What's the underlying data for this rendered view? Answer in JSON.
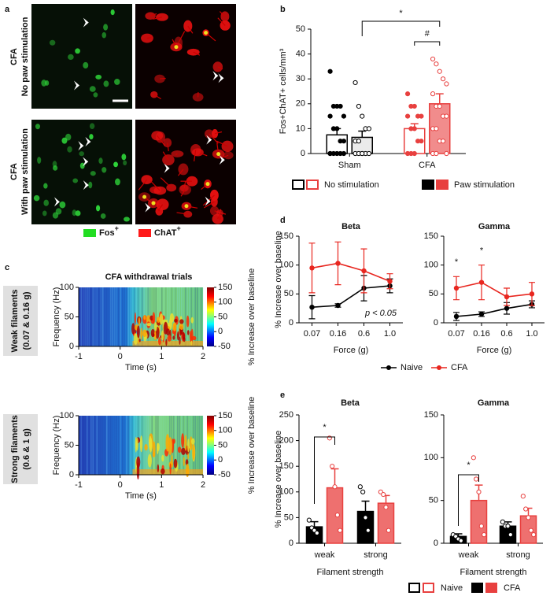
{
  "panel_labels": [
    "a",
    "b",
    "c",
    "d",
    "e"
  ],
  "panel_a": {
    "rows": [
      {
        "lines": [
          "CFA",
          "No paw stimulation"
        ]
      },
      {
        "lines": [
          "CFA",
          "With paw stimulation"
        ]
      }
    ],
    "legend": [
      {
        "name": "Fos",
        "sup": "+",
        "color": "#22dd22"
      },
      {
        "name": "ChAT",
        "sup": "+",
        "color": "#ff1a1a"
      }
    ]
  },
  "chart_data": [
    {
      "type": "bar",
      "ylabel": "Fos+ChAT+ cells/mm³",
      "categories": [
        "Sham",
        "CFA"
      ],
      "category_colors": [
        "#000000",
        "#e8403f"
      ],
      "ylim": [
        0,
        50
      ],
      "yticks": [
        0,
        10,
        20,
        30,
        40,
        50
      ],
      "series": [
        {
          "name": "No stimulation",
          "style": "open",
          "values": [
            7.5,
            10
          ],
          "errors": [
            2.5,
            2
          ],
          "points": [
            [
              33,
              19,
              19,
              19,
              15,
              15,
              10,
              10,
              5,
              5,
              0,
              0,
              0,
              0,
              0,
              0
            ],
            [
              24,
              19,
              19,
              15,
              15,
              15,
              10,
              10,
              5,
              5,
              0,
              0,
              0
            ]
          ]
        },
        {
          "name": "Paw stimulation",
          "style": "filled",
          "values": [
            6.5,
            20
          ],
          "errors": [
            2.5,
            4
          ],
          "points": [
            [
              28.5,
              19,
              15,
              10,
              10,
              5,
              5,
              0,
              0,
              0,
              0,
              0,
              0
            ],
            [
              38,
              36,
              33,
              30,
              28,
              24,
              19,
              19,
              15,
              15,
              10,
              10,
              5,
              5,
              0,
              0,
              0
            ]
          ]
        }
      ],
      "annotations": [
        "*",
        "#"
      ]
    },
    {
      "type": "heatmap",
      "title": "CFA withdrawal trials",
      "row_label": [
        "Weak filaments",
        "(0.07 & 0.16 g)"
      ],
      "xlabel": "Time (s)",
      "ylabel": "Frequency (Hz)",
      "xlim": [
        -1,
        2
      ],
      "xticks": [
        -1,
        0,
        1,
        2
      ],
      "ylim": [
        0,
        100
      ],
      "yticks": [
        0,
        50,
        100
      ],
      "colorbar_label": "% Increase over baseline",
      "clim": [
        -50,
        150
      ],
      "cticks": [
        -50,
        0,
        50,
        100,
        150
      ]
    },
    {
      "type": "heatmap",
      "row_label": [
        "Strong filaments",
        "(0.6 & 1 g)"
      ],
      "xlabel": "Time (s)",
      "ylabel": "Frequency (Hz)",
      "xlim": [
        -1,
        2
      ],
      "xticks": [
        -1,
        0,
        1,
        2
      ],
      "ylim": [
        0,
        100
      ],
      "yticks": [
        0,
        50,
        100
      ],
      "colorbar_label": "% Increase over baseline",
      "clim": [
        -50,
        150
      ],
      "cticks": [
        -50,
        0,
        50,
        100,
        150
      ]
    },
    {
      "type": "line",
      "title": "Beta",
      "categories": [
        "0.07",
        "0.16",
        "0.6",
        "1.0"
      ],
      "xlabel": "Force (g)",
      "ylabel": "% Increase over baseline",
      "ylim": [
        0,
        150
      ],
      "yticks": [
        0,
        50,
        100,
        150
      ],
      "series": [
        {
          "name": "Naive",
          "color": "#000000",
          "values": [
            27,
            30,
            60,
            64
          ],
          "errors": [
            20,
            3,
            22,
            12
          ]
        },
        {
          "name": "CFA",
          "color": "#e8261f",
          "values": [
            95,
            103,
            90,
            72
          ],
          "errors": [
            43,
            37,
            38,
            13
          ]
        }
      ],
      "annotations": [
        "p < 0.05"
      ]
    },
    {
      "type": "line",
      "title": "Gamma",
      "categories": [
        "0.07",
        "0.16",
        "0.6",
        "1.0"
      ],
      "xlabel": "Force (g)",
      "ylim": [
        0,
        150
      ],
      "yticks": [
        0,
        50,
        100,
        150
      ],
      "series": [
        {
          "color": "#000000",
          "values": [
            11,
            15,
            25,
            32
          ],
          "errors": [
            7,
            4,
            10,
            6
          ]
        },
        {
          "color": "#e8261f",
          "values": [
            60,
            70,
            45,
            50
          ],
          "errors": [
            20,
            30,
            15,
            20
          ]
        }
      ],
      "annotations": [
        "*",
        "*"
      ]
    },
    {
      "type": "bar",
      "title": "Beta",
      "categories": [
        "weak",
        "strong"
      ],
      "xlabel": "Filament strength",
      "ylabel": "% Increase over baseline",
      "ylim": [
        0,
        250
      ],
      "yticks": [
        0,
        50,
        100,
        150,
        200,
        250
      ],
      "series": [
        {
          "name": "Naive",
          "color": "#000000",
          "values": [
            32,
            62
          ],
          "errors": [
            10,
            20
          ],
          "points": [
            [
              45,
              30,
              25,
              20
            ],
            [
              110,
              100,
              50,
              25
            ]
          ]
        },
        {
          "name": "CFA",
          "color": "#e8403f",
          "values": [
            108,
            78
          ],
          "errors": [
            37,
            15
          ],
          "points": [
            [
              205,
              150,
              110,
              55,
              25
            ],
            [
              100,
              95,
              70,
              25
            ]
          ]
        }
      ],
      "annotations": [
        "*"
      ]
    },
    {
      "type": "bar",
      "title": "Gamma",
      "categories": [
        "weak",
        "strong"
      ],
      "xlabel": "Filament strength",
      "ylim": [
        0,
        150
      ],
      "yticks": [
        0,
        50,
        100,
        150
      ],
      "series": [
        {
          "color": "#000000",
          "values": [
            8,
            20
          ],
          "errors": [
            3,
            5
          ],
          "points": [
            [
              10,
              8,
              5,
              3
            ],
            [
              25,
              20,
              20,
              10
            ]
          ]
        },
        {
          "color": "#e8403f",
          "values": [
            50,
            32
          ],
          "errors": [
            18,
            9
          ],
          "points": [
            [
              100,
              75,
              60,
              20,
              10
            ],
            [
              55,
              40,
              30,
              15,
              10
            ]
          ]
        }
      ],
      "annotations": [
        "*"
      ]
    }
  ]
}
